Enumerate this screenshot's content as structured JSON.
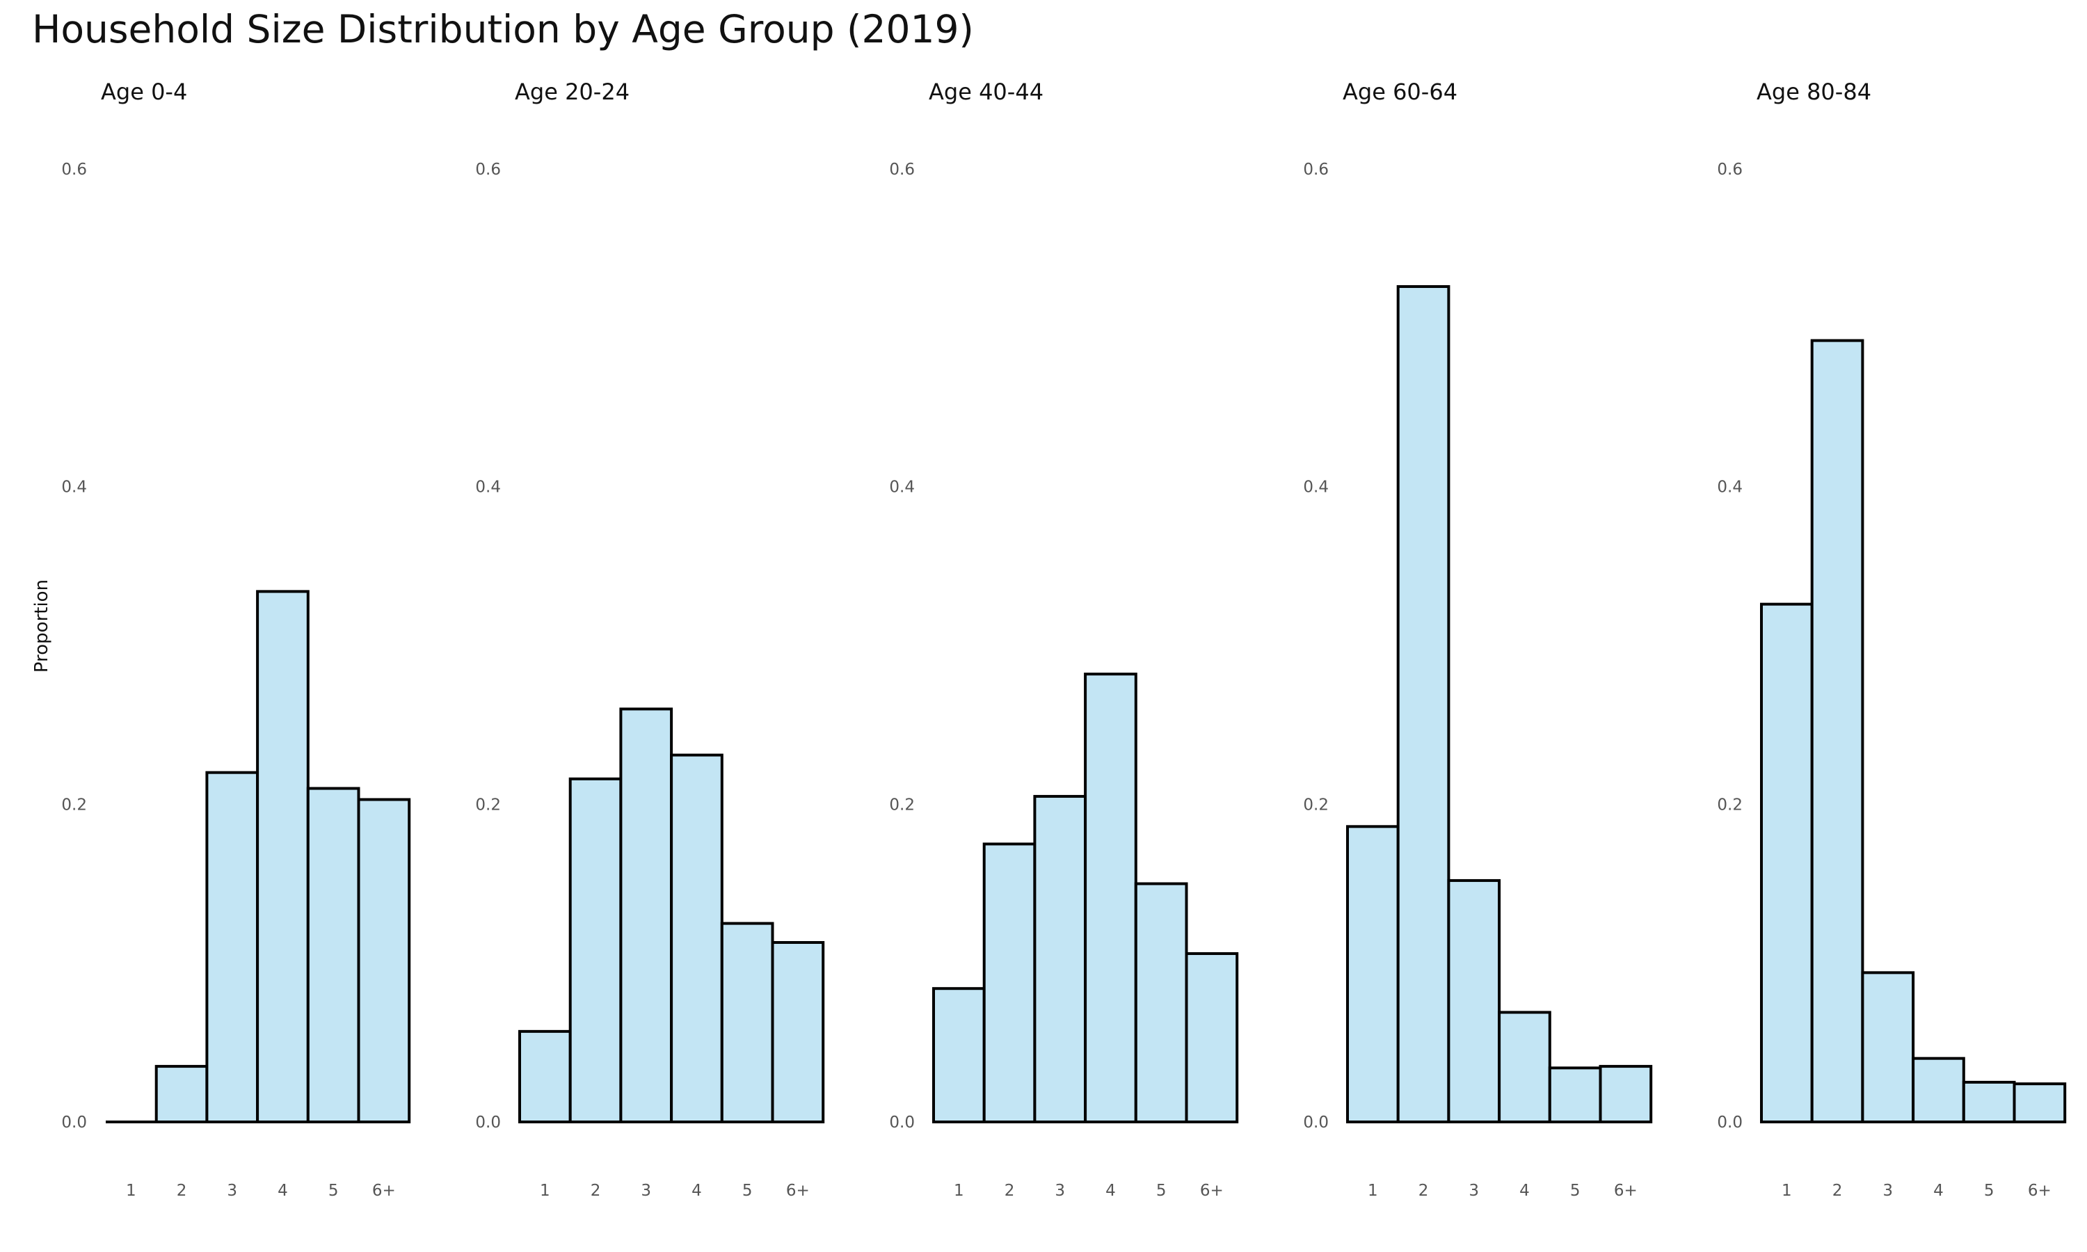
{
  "chart_data": {
    "type": "bar",
    "title": "Household Size Distribution by Age Group (2019)",
    "ylabel": "Proportion",
    "xlabel": "",
    "categories": [
      "1",
      "2",
      "3",
      "4",
      "5",
      "6+"
    ],
    "y_ticks": [
      "0.0",
      "0.2",
      "0.4",
      "0.6"
    ],
    "ylim": [
      0,
      0.6
    ],
    "grid": false,
    "bar_color": "#c3e5f4",
    "bar_edge_color": "#000000",
    "panels": [
      {
        "title": "Age 0-4",
        "values": [
          0.0,
          0.035,
          0.22,
          0.334,
          0.21,
          0.203
        ]
      },
      {
        "title": "Age 20-24",
        "values": [
          0.057,
          0.216,
          0.26,
          0.231,
          0.125,
          0.113
        ]
      },
      {
        "title": "Age 40-44",
        "values": [
          0.084,
          0.175,
          0.205,
          0.282,
          0.15,
          0.106
        ]
      },
      {
        "title": "Age 60-64",
        "values": [
          0.186,
          0.526,
          0.152,
          0.069,
          0.034,
          0.035
        ]
      },
      {
        "title": "Age 80-84",
        "values": [
          0.326,
          0.492,
          0.094,
          0.04,
          0.025,
          0.024
        ]
      }
    ]
  }
}
